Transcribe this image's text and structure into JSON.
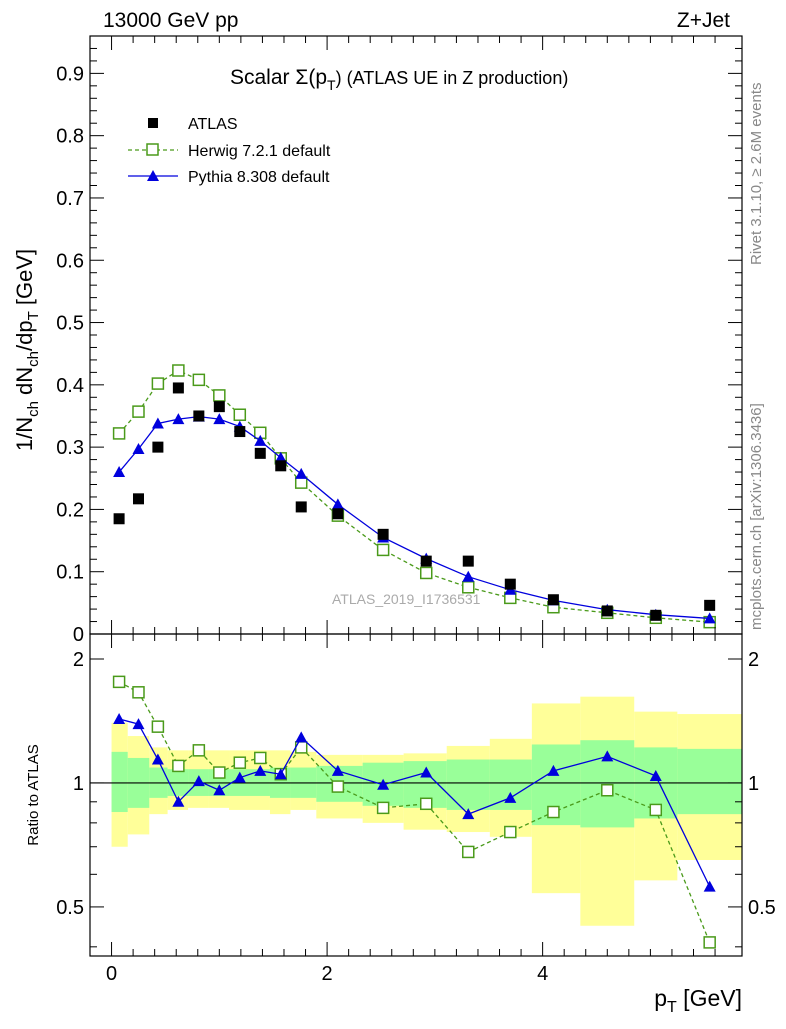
{
  "header": {
    "left": "13000 GeV pp",
    "right": "Z+Jet"
  },
  "side_labels": {
    "rivet": "Rivet 3.1.10, ≥ 2.6M events",
    "mcplots": "mcplots.cern.ch [arXiv:1306.3436]"
  },
  "watermark": "ATLAS_2019_I1736531",
  "chart_data": [
    {
      "type": "scatter",
      "title": "Scalar Σ(pT) (ATLAS UE in Z production)",
      "title_parts": {
        "main": "Scalar Σ(p",
        "sub": "T",
        "rest": ") (ATLAS UE in Z production)"
      },
      "ylabel": "1/N_ch dN_ch/dp_T [GeV]",
      "ylabel_parts": {
        "a": "1/N",
        "a_sub": "ch",
        "b": " dN",
        "b_sub": "ch",
        "c": "/dp",
        "c_sub": "T",
        "d": " [GeV]"
      },
      "xlim": [
        -0.2,
        5.85
      ],
      "ylim": [
        0,
        0.96
      ],
      "yticks": [
        0,
        0.1,
        0.2,
        0.3,
        0.4,
        0.5,
        0.6,
        0.7,
        0.8,
        0.9
      ],
      "ytick_labels": [
        "0",
        "0.1",
        "0.2",
        "0.3",
        "0.4",
        "0.5",
        "0.6",
        "0.7",
        "0.8",
        "0.9"
      ],
      "legend_position": "top-left",
      "x": [
        0.07,
        0.25,
        0.43,
        0.62,
        0.81,
        1.0,
        1.19,
        1.38,
        1.57,
        1.76,
        2.1,
        2.52,
        2.92,
        3.31,
        3.7,
        4.1,
        4.6,
        5.05,
        5.55
      ],
      "series": [
        {
          "name": "ATLAS",
          "style": "data",
          "color": "#000000",
          "values": [
            0.185,
            0.217,
            0.3,
            0.395,
            0.35,
            0.365,
            0.325,
            0.29,
            0.27,
            0.204,
            0.193,
            0.16,
            0.117,
            0.117,
            0.08,
            0.055,
            0.037,
            0.03,
            0.046
          ]
        },
        {
          "name": "Herwig 7.2.1 default",
          "style": "dashed-open-square",
          "color": "#4a9a1a",
          "values": [
            0.322,
            0.357,
            0.402,
            0.423,
            0.408,
            0.383,
            0.352,
            0.323,
            0.282,
            0.243,
            0.19,
            0.135,
            0.098,
            0.075,
            0.058,
            0.043,
            0.034,
            0.026,
            0.019
          ]
        },
        {
          "name": "Pythia 8.308 default",
          "style": "solid-triangle",
          "color": "#0000dd",
          "values": [
            0.26,
            0.297,
            0.338,
            0.345,
            0.349,
            0.345,
            0.333,
            0.31,
            0.283,
            0.257,
            0.208,
            0.155,
            0.121,
            0.092,
            0.071,
            0.054,
            0.039,
            0.031,
            0.025
          ]
        }
      ]
    },
    {
      "type": "line",
      "ylabel": "Ratio to ATLAS",
      "xlabel": "p_T [GeV]",
      "xlabel_parts": {
        "main": "p",
        "sub": "T",
        "rest": " [GeV]"
      },
      "xlim": [
        -0.2,
        5.85
      ],
      "ylim": [
        0.38,
        2.3
      ],
      "log_y": true,
      "xticks": [
        0,
        2,
        4
      ],
      "xtick_labels": [
        "0",
        "2",
        "4"
      ],
      "yticks": [
        0.5,
        1,
        2
      ],
      "ytick_labels": [
        "0.5",
        "1",
        "2"
      ],
      "reference": 1,
      "x": [
        0.07,
        0.25,
        0.43,
        0.62,
        0.81,
        1.0,
        1.19,
        1.38,
        1.57,
        1.76,
        2.1,
        2.52,
        2.92,
        3.31,
        3.7,
        4.1,
        4.6,
        5.05,
        5.55
      ],
      "bands": {
        "edges": [
          0.0,
          0.15,
          0.35,
          0.52,
          0.71,
          0.9,
          1.09,
          1.28,
          1.47,
          1.66,
          1.9,
          2.33,
          2.71,
          3.11,
          3.51,
          3.9,
          4.35,
          4.85,
          5.25,
          5.85
        ],
        "outer_color": "#ffff99",
        "inner_color": "#99ff99",
        "outer_lo": [
          0.7,
          0.75,
          0.84,
          0.86,
          0.87,
          0.87,
          0.86,
          0.86,
          0.84,
          0.86,
          0.82,
          0.8,
          0.77,
          0.76,
          0.74,
          0.54,
          0.45,
          0.58,
          0.65
        ],
        "outer_hi": [
          1.4,
          1.3,
          1.22,
          1.2,
          1.2,
          1.2,
          1.2,
          1.2,
          1.2,
          1.19,
          1.17,
          1.17,
          1.18,
          1.23,
          1.28,
          1.56,
          1.62,
          1.49,
          1.47
        ],
        "inner_lo": [
          0.85,
          0.87,
          0.92,
          0.93,
          0.93,
          0.93,
          0.93,
          0.93,
          0.92,
          0.92,
          0.9,
          0.88,
          0.87,
          0.86,
          0.86,
          0.79,
          0.78,
          0.82,
          0.84
        ],
        "inner_hi": [
          1.19,
          1.15,
          1.09,
          1.08,
          1.08,
          1.08,
          1.08,
          1.08,
          1.09,
          1.09,
          1.1,
          1.12,
          1.13,
          1.14,
          1.14,
          1.24,
          1.27,
          1.22,
          1.21
        ]
      },
      "series": [
        {
          "name": "Herwig 7.2.1 default",
          "style": "dashed-open-square",
          "color": "#4a9a1a",
          "values": [
            1.76,
            1.66,
            1.37,
            1.1,
            1.2,
            1.06,
            1.12,
            1.15,
            1.05,
            1.22,
            0.98,
            0.87,
            0.89,
            0.68,
            0.76,
            0.85,
            0.96,
            0.86,
            0.41
          ]
        },
        {
          "name": "Pythia 8.308 default",
          "style": "solid-triangle",
          "color": "#0000dd",
          "values": [
            1.43,
            1.39,
            1.14,
            0.9,
            1.01,
            0.96,
            1.03,
            1.07,
            1.05,
            1.29,
            1.07,
            0.99,
            1.06,
            0.84,
            0.92,
            1.07,
            1.16,
            1.04,
            0.56
          ]
        }
      ]
    }
  ]
}
